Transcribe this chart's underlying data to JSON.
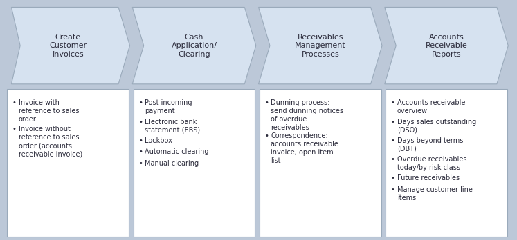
{
  "background_color": "#bcc8d8",
  "arrow_fill_color": "#d6e2f0",
  "arrow_edge_color": "#9aaabb",
  "box_fill_color": "#ffffff",
  "box_edge_color": "#9aaabb",
  "text_color": "#2a2a3a",
  "headers": [
    "Create\nCustomer\nInvoices",
    "Cash\nApplication/\nClearing",
    "Receivables\nManagement\nProcesses",
    "Accounts\nReceivable\nReports"
  ],
  "bullet_items": [
    [
      "Invoice with\nreference to sales\norder",
      "Invoice without\nreference to sales\norder (accounts\nreceivable invoice)"
    ],
    [
      "Post incoming\npayment",
      "Electronic bank\nstatement (EBS)",
      "Lockbox",
      "Automatic clearing",
      "Manual clearing"
    ],
    [
      "Dunning process:\nsend dunning notices\nof overdue\nreceivables",
      "Correspondence:\naccounts receivable\ninvoice, open item\nlist"
    ],
    [
      "Accounts receivable\noverview",
      "Days sales outstanding\n(DSO)",
      "Days beyond terms\n(DBT)",
      "Overdue receivables\ntoday/by risk class",
      "Future receivables",
      "Manage customer line\nitems"
    ]
  ],
  "fig_width": 7.47,
  "fig_height": 3.48,
  "dpi": 100
}
